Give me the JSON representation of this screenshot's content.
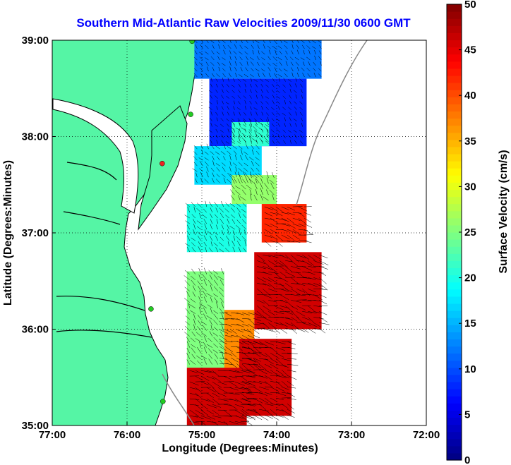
{
  "chart_data": {
    "type": "heatmap",
    "title": "Southern Mid-Atlantic Raw Velocities 2009/11/30 0600 GMT",
    "xlabel": "Longitude (Degrees:Minutes)",
    "ylabel": "Latitude (Degrees:Minutes)",
    "colorbar_label": "Surface Velocity (cm/s)",
    "xlim": [
      -77,
      -72
    ],
    "ylim": [
      35,
      39
    ],
    "clim": [
      0,
      50
    ],
    "x_ticks": [
      {
        "value": -77,
        "label": "77:00"
      },
      {
        "value": -76,
        "label": "76:00"
      },
      {
        "value": -75,
        "label": "75:00"
      },
      {
        "value": -74,
        "label": "74:00"
      },
      {
        "value": -73,
        "label": "73:00"
      },
      {
        "value": -72,
        "label": "72:00"
      }
    ],
    "y_ticks": [
      {
        "value": 35,
        "label": "35:00"
      },
      {
        "value": 36,
        "label": "36:00"
      },
      {
        "value": 37,
        "label": "37:00"
      },
      {
        "value": 38,
        "label": "38:00"
      },
      {
        "value": 39,
        "label": "39:00"
      }
    ],
    "colorbar_ticks": [
      0,
      5,
      10,
      15,
      20,
      25,
      30,
      35,
      40,
      45,
      50
    ],
    "grid": true,
    "grid_style": "dotted",
    "colormap": "jet",
    "land_color": "#55f5a5",
    "sites": [
      {
        "lon": -75.13,
        "lat": 38.99,
        "color": "#22cc22"
      },
      {
        "lon": -75.15,
        "lat": 38.23,
        "color": "#22cc22"
      },
      {
        "lon": -75.53,
        "lat": 37.72,
        "color": "#ee2222"
      },
      {
        "lon": -75.68,
        "lat": 36.21,
        "color": "#22cc22"
      },
      {
        "lon": -75.52,
        "lat": 35.25,
        "color": "#22cc22"
      }
    ],
    "field_regions": [
      {
        "lon": [
          -75.1,
          -73.4
        ],
        "lat": [
          38.6,
          39.0
        ],
        "value": 12
      },
      {
        "lon": [
          -74.9,
          -73.6
        ],
        "lat": [
          37.9,
          38.6
        ],
        "value": 8
      },
      {
        "lon": [
          -74.6,
          -74.1
        ],
        "lat": [
          37.9,
          38.15
        ],
        "value": 21
      },
      {
        "lon": [
          -75.1,
          -74.2
        ],
        "lat": [
          37.5,
          37.9
        ],
        "value": 17
      },
      {
        "lon": [
          -74.6,
          -74.0
        ],
        "lat": [
          37.3,
          37.6
        ],
        "value": 26
      },
      {
        "lon": [
          -75.2,
          -74.4
        ],
        "lat": [
          36.8,
          37.3
        ],
        "value": 20
      },
      {
        "lon": [
          -74.2,
          -73.6
        ],
        "lat": [
          36.9,
          37.3
        ],
        "value": 42
      },
      {
        "lon": [
          -74.3,
          -73.4
        ],
        "lat": [
          36.0,
          36.8
        ],
        "value": 46
      },
      {
        "lon": [
          -74.8,
          -74.3
        ],
        "lat": [
          35.6,
          36.2
        ],
        "value": 37
      },
      {
        "lon": [
          -75.2,
          -74.7
        ],
        "lat": [
          35.6,
          36.6
        ],
        "value": 25
      },
      {
        "lon": [
          -75.2,
          -74.4
        ],
        "lat": [
          35.0,
          35.6
        ],
        "value": 46
      },
      {
        "lon": [
          -74.5,
          -73.8
        ],
        "lat": [
          35.1,
          35.9
        ],
        "value": 46
      }
    ]
  }
}
